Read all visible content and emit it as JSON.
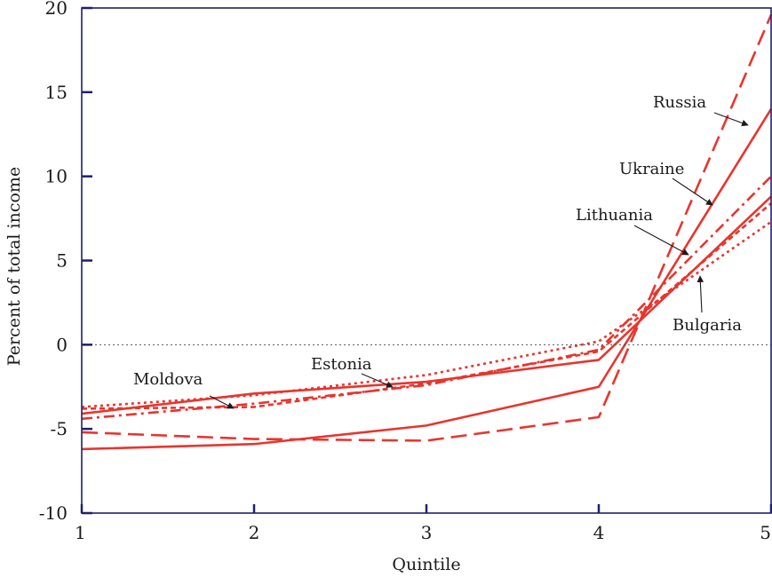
{
  "chart_data": {
    "type": "line",
    "xlabel": "Quintile",
    "ylabel": "Percent of total income",
    "x": [
      1,
      2,
      3,
      4,
      5
    ],
    "x_ticks": [
      "1",
      "2",
      "3",
      "4",
      "5"
    ],
    "y_ticks": [
      "20",
      "15",
      "10",
      "5",
      "0",
      "-5",
      "-10"
    ],
    "xlim": [
      1,
      5
    ],
    "ylim": [
      -10,
      20
    ],
    "zero_reference_line": true,
    "grid": false,
    "line_color": "#e8352e",
    "axis_color": "#1f1f6b",
    "series": [
      {
        "name": "Russia",
        "values": [
          -5.2,
          -5.6,
          -5.7,
          -4.3,
          19.6
        ],
        "style": "long-dash"
      },
      {
        "name": "Ukraine",
        "values": [
          -6.2,
          -5.9,
          -4.8,
          -2.5,
          14.0
        ],
        "style": "solid"
      },
      {
        "name": "Lithuania",
        "values": [
          -4.4,
          -3.5,
          -2.4,
          -0.3,
          10.0
        ],
        "style": "dash-dot"
      },
      {
        "name": "Bulgaria",
        "values": [
          -4.1,
          -2.9,
          -2.2,
          -0.9,
          8.8
        ],
        "style": "solid"
      },
      {
        "name": "Estonia",
        "values": [
          -3.7,
          -3.0,
          -1.8,
          0.2,
          7.3
        ],
        "style": "dotted"
      },
      {
        "name": "Moldova",
        "values": [
          -3.8,
          -3.7,
          -2.3,
          -0.4,
          8.4
        ],
        "style": "short-dash"
      }
    ],
    "annotations": [
      {
        "label": "Russia",
        "points_to": "Russia"
      },
      {
        "label": "Ukraine",
        "points_to": "Ukraine"
      },
      {
        "label": "Lithuania",
        "points_to": "Lithuania"
      },
      {
        "label": "Bulgaria",
        "points_to": "Bulgaria"
      },
      {
        "label": "Estonia",
        "points_to": "Estonia"
      },
      {
        "label": "Moldova",
        "points_to": "Moldova"
      }
    ]
  }
}
